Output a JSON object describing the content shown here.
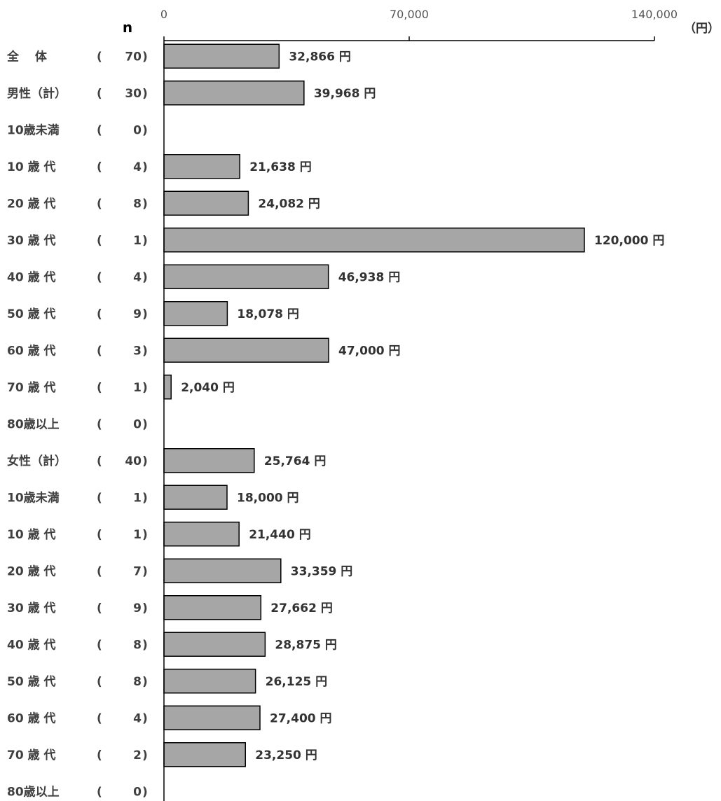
{
  "chart_data": {
    "type": "bar",
    "orientation": "horizontal",
    "n_header": "n",
    "unit_label": "（円）",
    "value_suffix": " 円",
    "xlim": [
      0,
      140000
    ],
    "x_ticks": [
      {
        "value": 0,
        "label": "0"
      },
      {
        "value": 70000,
        "label": "70,000"
      },
      {
        "value": 140000,
        "label": "140,000"
      }
    ],
    "grid": false,
    "bar_color": "#a6a6a6",
    "bar_edge_color": "#000000",
    "rows": [
      {
        "label": "全　 体",
        "n": "70",
        "value": 32866,
        "value_label": "32,866"
      },
      {
        "label": "男性（計）",
        "n": "30",
        "value": 39968,
        "value_label": "39,968"
      },
      {
        "label": "10歳未満",
        "n": "0",
        "value": null,
        "value_label": ""
      },
      {
        "label": "10 歳 代",
        "n": "4",
        "value": 21638,
        "value_label": "21,638"
      },
      {
        "label": "20 歳 代",
        "n": "8",
        "value": 24082,
        "value_label": "24,082"
      },
      {
        "label": "30 歳 代",
        "n": "1",
        "value": 120000,
        "value_label": "120,000"
      },
      {
        "label": "40 歳 代",
        "n": "4",
        "value": 46938,
        "value_label": "46,938"
      },
      {
        "label": "50 歳 代",
        "n": "9",
        "value": 18078,
        "value_label": "18,078"
      },
      {
        "label": "60 歳 代",
        "n": "3",
        "value": 47000,
        "value_label": "47,000"
      },
      {
        "label": "70 歳 代",
        "n": "1",
        "value": 2040,
        "value_label": "2,040"
      },
      {
        "label": "80歳以上",
        "n": "0",
        "value": null,
        "value_label": ""
      },
      {
        "label": "女性（計）",
        "n": "40",
        "value": 25764,
        "value_label": "25,764"
      },
      {
        "label": "10歳未満",
        "n": "1",
        "value": 18000,
        "value_label": "18,000"
      },
      {
        "label": "10 歳 代",
        "n": "1",
        "value": 21440,
        "value_label": "21,440"
      },
      {
        "label": "20 歳 代",
        "n": "7",
        "value": 33359,
        "value_label": "33,359"
      },
      {
        "label": "30 歳 代",
        "n": "9",
        "value": 27662,
        "value_label": "27,662"
      },
      {
        "label": "40 歳 代",
        "n": "8",
        "value": 28875,
        "value_label": "28,875"
      },
      {
        "label": "50 歳 代",
        "n": "8",
        "value": 26125,
        "value_label": "26,125"
      },
      {
        "label": "60 歳 代",
        "n": "4",
        "value": 27400,
        "value_label": "27,400"
      },
      {
        "label": "70 歳 代",
        "n": "2",
        "value": 23250,
        "value_label": "23,250"
      },
      {
        "label": "80歳以上",
        "n": "0",
        "value": null,
        "value_label": ""
      }
    ]
  }
}
